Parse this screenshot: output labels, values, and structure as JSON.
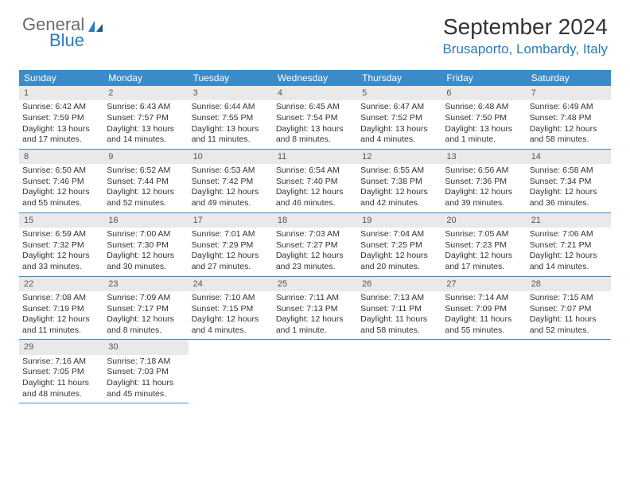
{
  "logo": {
    "general": "General",
    "blue": "Blue"
  },
  "title": "September 2024",
  "location": "Brusaporto, Lombardy, Italy",
  "weekdays": [
    "Sunday",
    "Monday",
    "Tuesday",
    "Wednesday",
    "Thursday",
    "Friday",
    "Saturday"
  ],
  "colors": {
    "header_bg": "#3b8bc9",
    "header_text": "#ffffff",
    "daynum_bg": "#e9e9e9",
    "border": "#3b8bc9",
    "logo_gray": "#6b6b6b",
    "logo_blue": "#2a7bbd"
  },
  "weeks": [
    [
      {
        "n": "1",
        "sr": "Sunrise: 6:42 AM",
        "ss": "Sunset: 7:59 PM",
        "d1": "Daylight: 13 hours",
        "d2": "and 17 minutes."
      },
      {
        "n": "2",
        "sr": "Sunrise: 6:43 AM",
        "ss": "Sunset: 7:57 PM",
        "d1": "Daylight: 13 hours",
        "d2": "and 14 minutes."
      },
      {
        "n": "3",
        "sr": "Sunrise: 6:44 AM",
        "ss": "Sunset: 7:55 PM",
        "d1": "Daylight: 13 hours",
        "d2": "and 11 minutes."
      },
      {
        "n": "4",
        "sr": "Sunrise: 6:45 AM",
        "ss": "Sunset: 7:54 PM",
        "d1": "Daylight: 13 hours",
        "d2": "and 8 minutes."
      },
      {
        "n": "5",
        "sr": "Sunrise: 6:47 AM",
        "ss": "Sunset: 7:52 PM",
        "d1": "Daylight: 13 hours",
        "d2": "and 4 minutes."
      },
      {
        "n": "6",
        "sr": "Sunrise: 6:48 AM",
        "ss": "Sunset: 7:50 PM",
        "d1": "Daylight: 13 hours",
        "d2": "and 1 minute."
      },
      {
        "n": "7",
        "sr": "Sunrise: 6:49 AM",
        "ss": "Sunset: 7:48 PM",
        "d1": "Daylight: 12 hours",
        "d2": "and 58 minutes."
      }
    ],
    [
      {
        "n": "8",
        "sr": "Sunrise: 6:50 AM",
        "ss": "Sunset: 7:46 PM",
        "d1": "Daylight: 12 hours",
        "d2": "and 55 minutes."
      },
      {
        "n": "9",
        "sr": "Sunrise: 6:52 AM",
        "ss": "Sunset: 7:44 PM",
        "d1": "Daylight: 12 hours",
        "d2": "and 52 minutes."
      },
      {
        "n": "10",
        "sr": "Sunrise: 6:53 AM",
        "ss": "Sunset: 7:42 PM",
        "d1": "Daylight: 12 hours",
        "d2": "and 49 minutes."
      },
      {
        "n": "11",
        "sr": "Sunrise: 6:54 AM",
        "ss": "Sunset: 7:40 PM",
        "d1": "Daylight: 12 hours",
        "d2": "and 46 minutes."
      },
      {
        "n": "12",
        "sr": "Sunrise: 6:55 AM",
        "ss": "Sunset: 7:38 PM",
        "d1": "Daylight: 12 hours",
        "d2": "and 42 minutes."
      },
      {
        "n": "13",
        "sr": "Sunrise: 6:56 AM",
        "ss": "Sunset: 7:36 PM",
        "d1": "Daylight: 12 hours",
        "d2": "and 39 minutes."
      },
      {
        "n": "14",
        "sr": "Sunrise: 6:58 AM",
        "ss": "Sunset: 7:34 PM",
        "d1": "Daylight: 12 hours",
        "d2": "and 36 minutes."
      }
    ],
    [
      {
        "n": "15",
        "sr": "Sunrise: 6:59 AM",
        "ss": "Sunset: 7:32 PM",
        "d1": "Daylight: 12 hours",
        "d2": "and 33 minutes."
      },
      {
        "n": "16",
        "sr": "Sunrise: 7:00 AM",
        "ss": "Sunset: 7:30 PM",
        "d1": "Daylight: 12 hours",
        "d2": "and 30 minutes."
      },
      {
        "n": "17",
        "sr": "Sunrise: 7:01 AM",
        "ss": "Sunset: 7:29 PM",
        "d1": "Daylight: 12 hours",
        "d2": "and 27 minutes."
      },
      {
        "n": "18",
        "sr": "Sunrise: 7:03 AM",
        "ss": "Sunset: 7:27 PM",
        "d1": "Daylight: 12 hours",
        "d2": "and 23 minutes."
      },
      {
        "n": "19",
        "sr": "Sunrise: 7:04 AM",
        "ss": "Sunset: 7:25 PM",
        "d1": "Daylight: 12 hours",
        "d2": "and 20 minutes."
      },
      {
        "n": "20",
        "sr": "Sunrise: 7:05 AM",
        "ss": "Sunset: 7:23 PM",
        "d1": "Daylight: 12 hours",
        "d2": "and 17 minutes."
      },
      {
        "n": "21",
        "sr": "Sunrise: 7:06 AM",
        "ss": "Sunset: 7:21 PM",
        "d1": "Daylight: 12 hours",
        "d2": "and 14 minutes."
      }
    ],
    [
      {
        "n": "22",
        "sr": "Sunrise: 7:08 AM",
        "ss": "Sunset: 7:19 PM",
        "d1": "Daylight: 12 hours",
        "d2": "and 11 minutes."
      },
      {
        "n": "23",
        "sr": "Sunrise: 7:09 AM",
        "ss": "Sunset: 7:17 PM",
        "d1": "Daylight: 12 hours",
        "d2": "and 8 minutes."
      },
      {
        "n": "24",
        "sr": "Sunrise: 7:10 AM",
        "ss": "Sunset: 7:15 PM",
        "d1": "Daylight: 12 hours",
        "d2": "and 4 minutes."
      },
      {
        "n": "25",
        "sr": "Sunrise: 7:11 AM",
        "ss": "Sunset: 7:13 PM",
        "d1": "Daylight: 12 hours",
        "d2": "and 1 minute."
      },
      {
        "n": "26",
        "sr": "Sunrise: 7:13 AM",
        "ss": "Sunset: 7:11 PM",
        "d1": "Daylight: 11 hours",
        "d2": "and 58 minutes."
      },
      {
        "n": "27",
        "sr": "Sunrise: 7:14 AM",
        "ss": "Sunset: 7:09 PM",
        "d1": "Daylight: 11 hours",
        "d2": "and 55 minutes."
      },
      {
        "n": "28",
        "sr": "Sunrise: 7:15 AM",
        "ss": "Sunset: 7:07 PM",
        "d1": "Daylight: 11 hours",
        "d2": "and 52 minutes."
      }
    ],
    [
      {
        "n": "29",
        "sr": "Sunrise: 7:16 AM",
        "ss": "Sunset: 7:05 PM",
        "d1": "Daylight: 11 hours",
        "d2": "and 48 minutes."
      },
      {
        "n": "30",
        "sr": "Sunrise: 7:18 AM",
        "ss": "Sunset: 7:03 PM",
        "d1": "Daylight: 11 hours",
        "d2": "and 45 minutes."
      },
      null,
      null,
      null,
      null,
      null
    ]
  ]
}
